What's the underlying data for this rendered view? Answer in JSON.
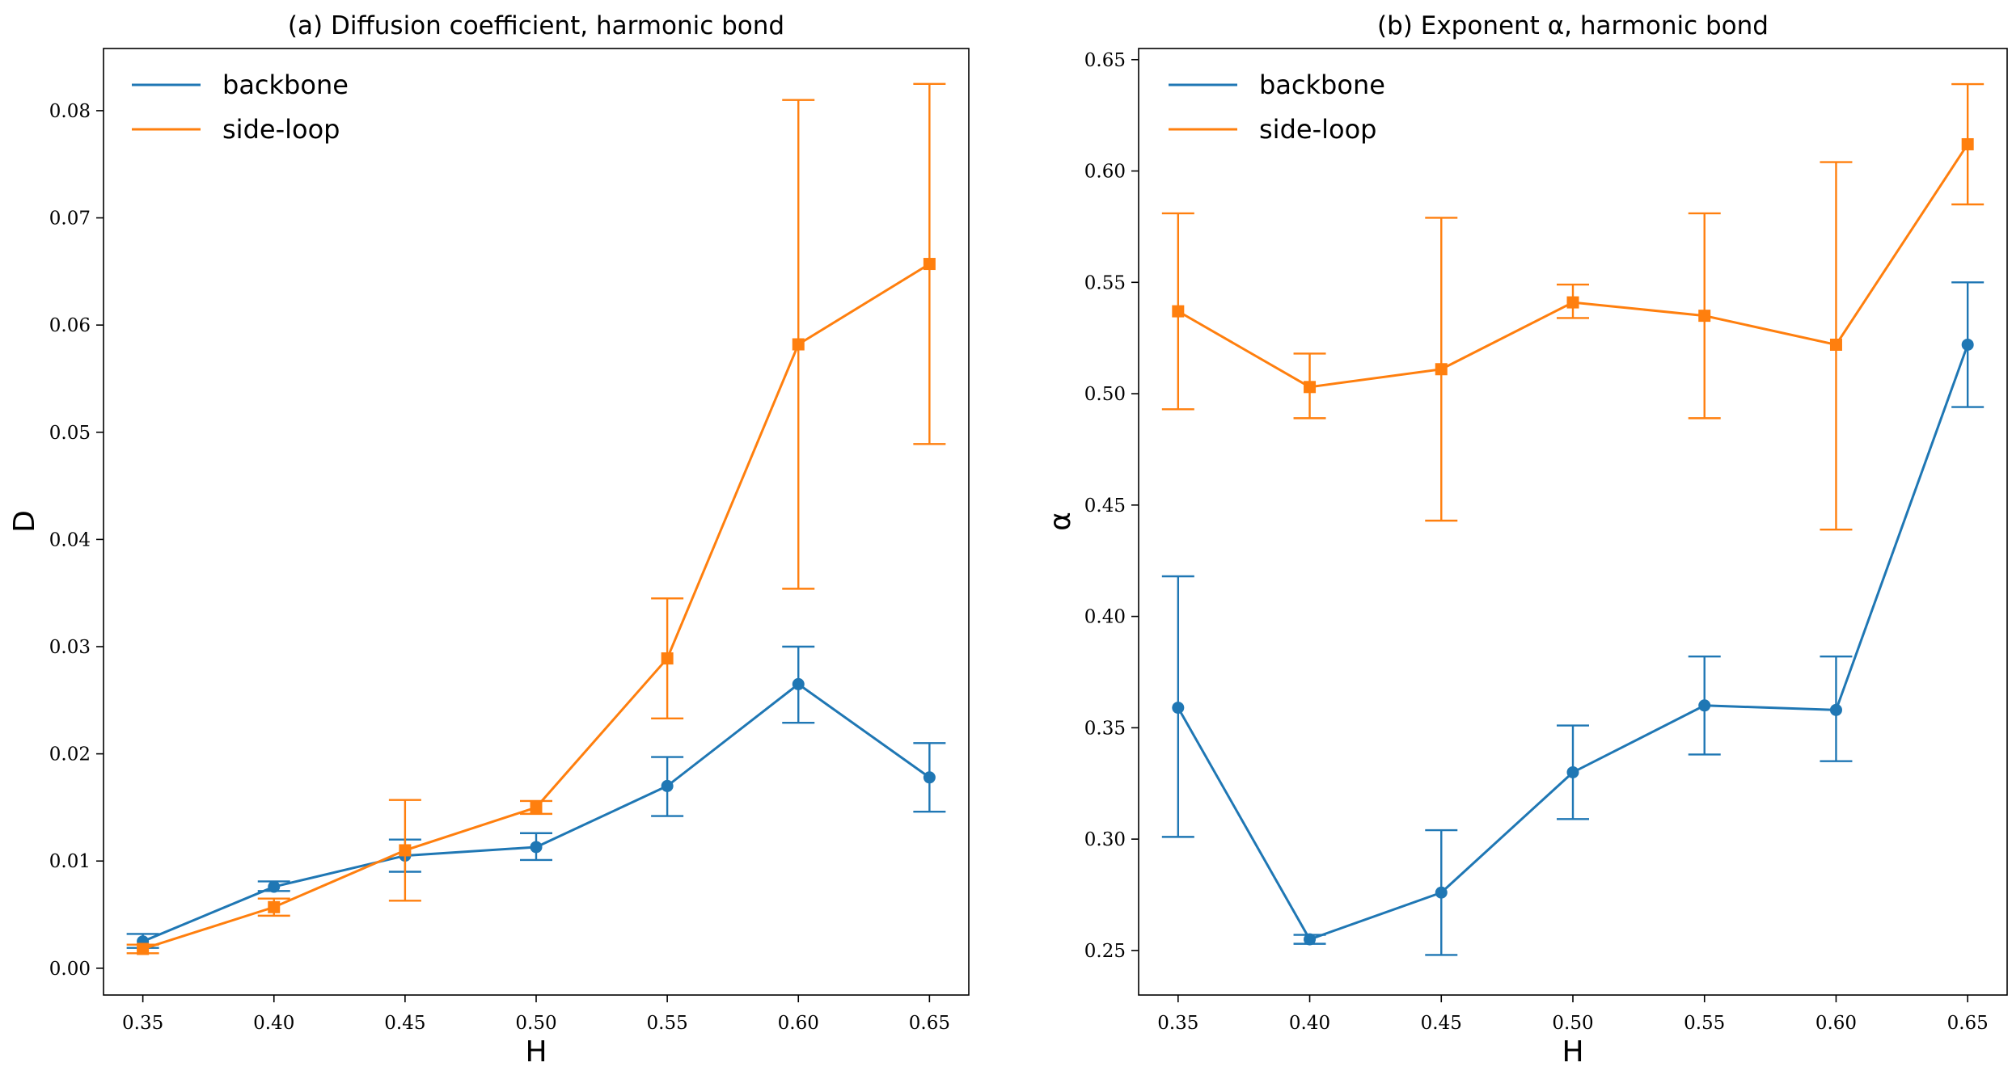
{
  "chart_data": [
    {
      "type": "line",
      "title": "(a) Diffusion coefficient, harmonic bond",
      "xlabel": "H",
      "ylabel": "D",
      "x": [
        0.35,
        0.4,
        0.45,
        0.5,
        0.55,
        0.6,
        0.65
      ],
      "xticks": [
        "0.35",
        "0.40",
        "0.45",
        "0.50",
        "0.55",
        "0.60",
        "0.65"
      ],
      "xlim": [
        0.335,
        0.665
      ],
      "ylim": [
        -0.0025,
        0.0858
      ],
      "yticks": [
        "0.00",
        "0.01",
        "0.02",
        "0.03",
        "0.04",
        "0.05",
        "0.06",
        "0.07",
        "0.08"
      ],
      "legend_position": "top-left",
      "series": [
        {
          "name": "backbone",
          "color": "#1f77b4",
          "marker": "circle",
          "values": [
            0.0025,
            0.0076,
            0.0105,
            0.0113,
            0.017,
            0.0265,
            0.0178
          ],
          "err_low": [
            0.0019,
            0.0072,
            0.009,
            0.0101,
            0.0142,
            0.0229,
            0.0146
          ],
          "err_high": [
            0.0032,
            0.0081,
            0.012,
            0.0126,
            0.0197,
            0.03,
            0.021
          ]
        },
        {
          "name": "side-loop",
          "color": "#ff7f0e",
          "marker": "square",
          "values": [
            0.0018,
            0.0057,
            0.011,
            0.015,
            0.0289,
            0.0582,
            0.0657
          ],
          "err_low": [
            0.0014,
            0.0049,
            0.0063,
            0.0144,
            0.0233,
            0.0354,
            0.0489
          ],
          "err_high": [
            0.0022,
            0.0065,
            0.0157,
            0.0156,
            0.0345,
            0.081,
            0.0825
          ]
        }
      ]
    },
    {
      "type": "line",
      "title": "(b) Exponent α, harmonic bond",
      "xlabel": "H",
      "ylabel": "α",
      "x": [
        0.35,
        0.4,
        0.45,
        0.5,
        0.55,
        0.6,
        0.65
      ],
      "xticks": [
        "0.35",
        "0.40",
        "0.45",
        "0.50",
        "0.55",
        "0.60",
        "0.65"
      ],
      "xlim": [
        0.335,
        0.665
      ],
      "ylim": [
        0.23,
        0.655
      ],
      "yticks": [
        "0.25",
        "0.30",
        "0.35",
        "0.40",
        "0.45",
        "0.50",
        "0.55",
        "0.60",
        "0.65"
      ],
      "legend_position": "top-left",
      "series": [
        {
          "name": "backbone",
          "color": "#1f77b4",
          "marker": "circle",
          "values": [
            0.359,
            0.255,
            0.276,
            0.33,
            0.36,
            0.358,
            0.522
          ],
          "err_low": [
            0.301,
            0.253,
            0.248,
            0.309,
            0.338,
            0.335,
            0.494
          ],
          "err_high": [
            0.418,
            0.257,
            0.304,
            0.351,
            0.382,
            0.382,
            0.55
          ]
        },
        {
          "name": "side-loop",
          "color": "#ff7f0e",
          "marker": "square",
          "values": [
            0.537,
            0.503,
            0.511,
            0.541,
            0.535,
            0.522,
            0.612
          ],
          "err_low": [
            0.493,
            0.489,
            0.443,
            0.534,
            0.489,
            0.439,
            0.585
          ],
          "err_high": [
            0.581,
            0.518,
            0.579,
            0.549,
            0.581,
            0.604,
            0.639
          ]
        }
      ]
    }
  ]
}
